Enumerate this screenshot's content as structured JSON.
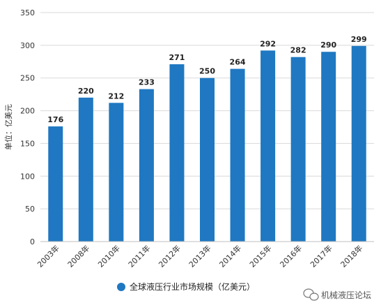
{
  "chart_data": {
    "type": "bar",
    "categories": [
      "2003年",
      "2008年",
      "2010年",
      "2011年",
      "2012年",
      "2013年",
      "2014年",
      "2015年",
      "2016年",
      "2017年",
      "2018年"
    ],
    "series": [
      {
        "name": "全球液压行业市场规模（亿美元）",
        "values": [
          176,
          220,
          212,
          233,
          271,
          250,
          264,
          292,
          282,
          290,
          299
        ]
      }
    ],
    "ylabel": "单位：亿美元",
    "ylim": [
      0,
      350
    ],
    "yticks": [
      0,
      50,
      100,
      150,
      200,
      250,
      300,
      350
    ],
    "grid": true,
    "legend": "bottom",
    "bar_color": "#1f78c1",
    "grid_color": "#d9d9d9"
  },
  "watermark": {
    "text": "机械液压论坛",
    "icon": "wechat-icon"
  }
}
